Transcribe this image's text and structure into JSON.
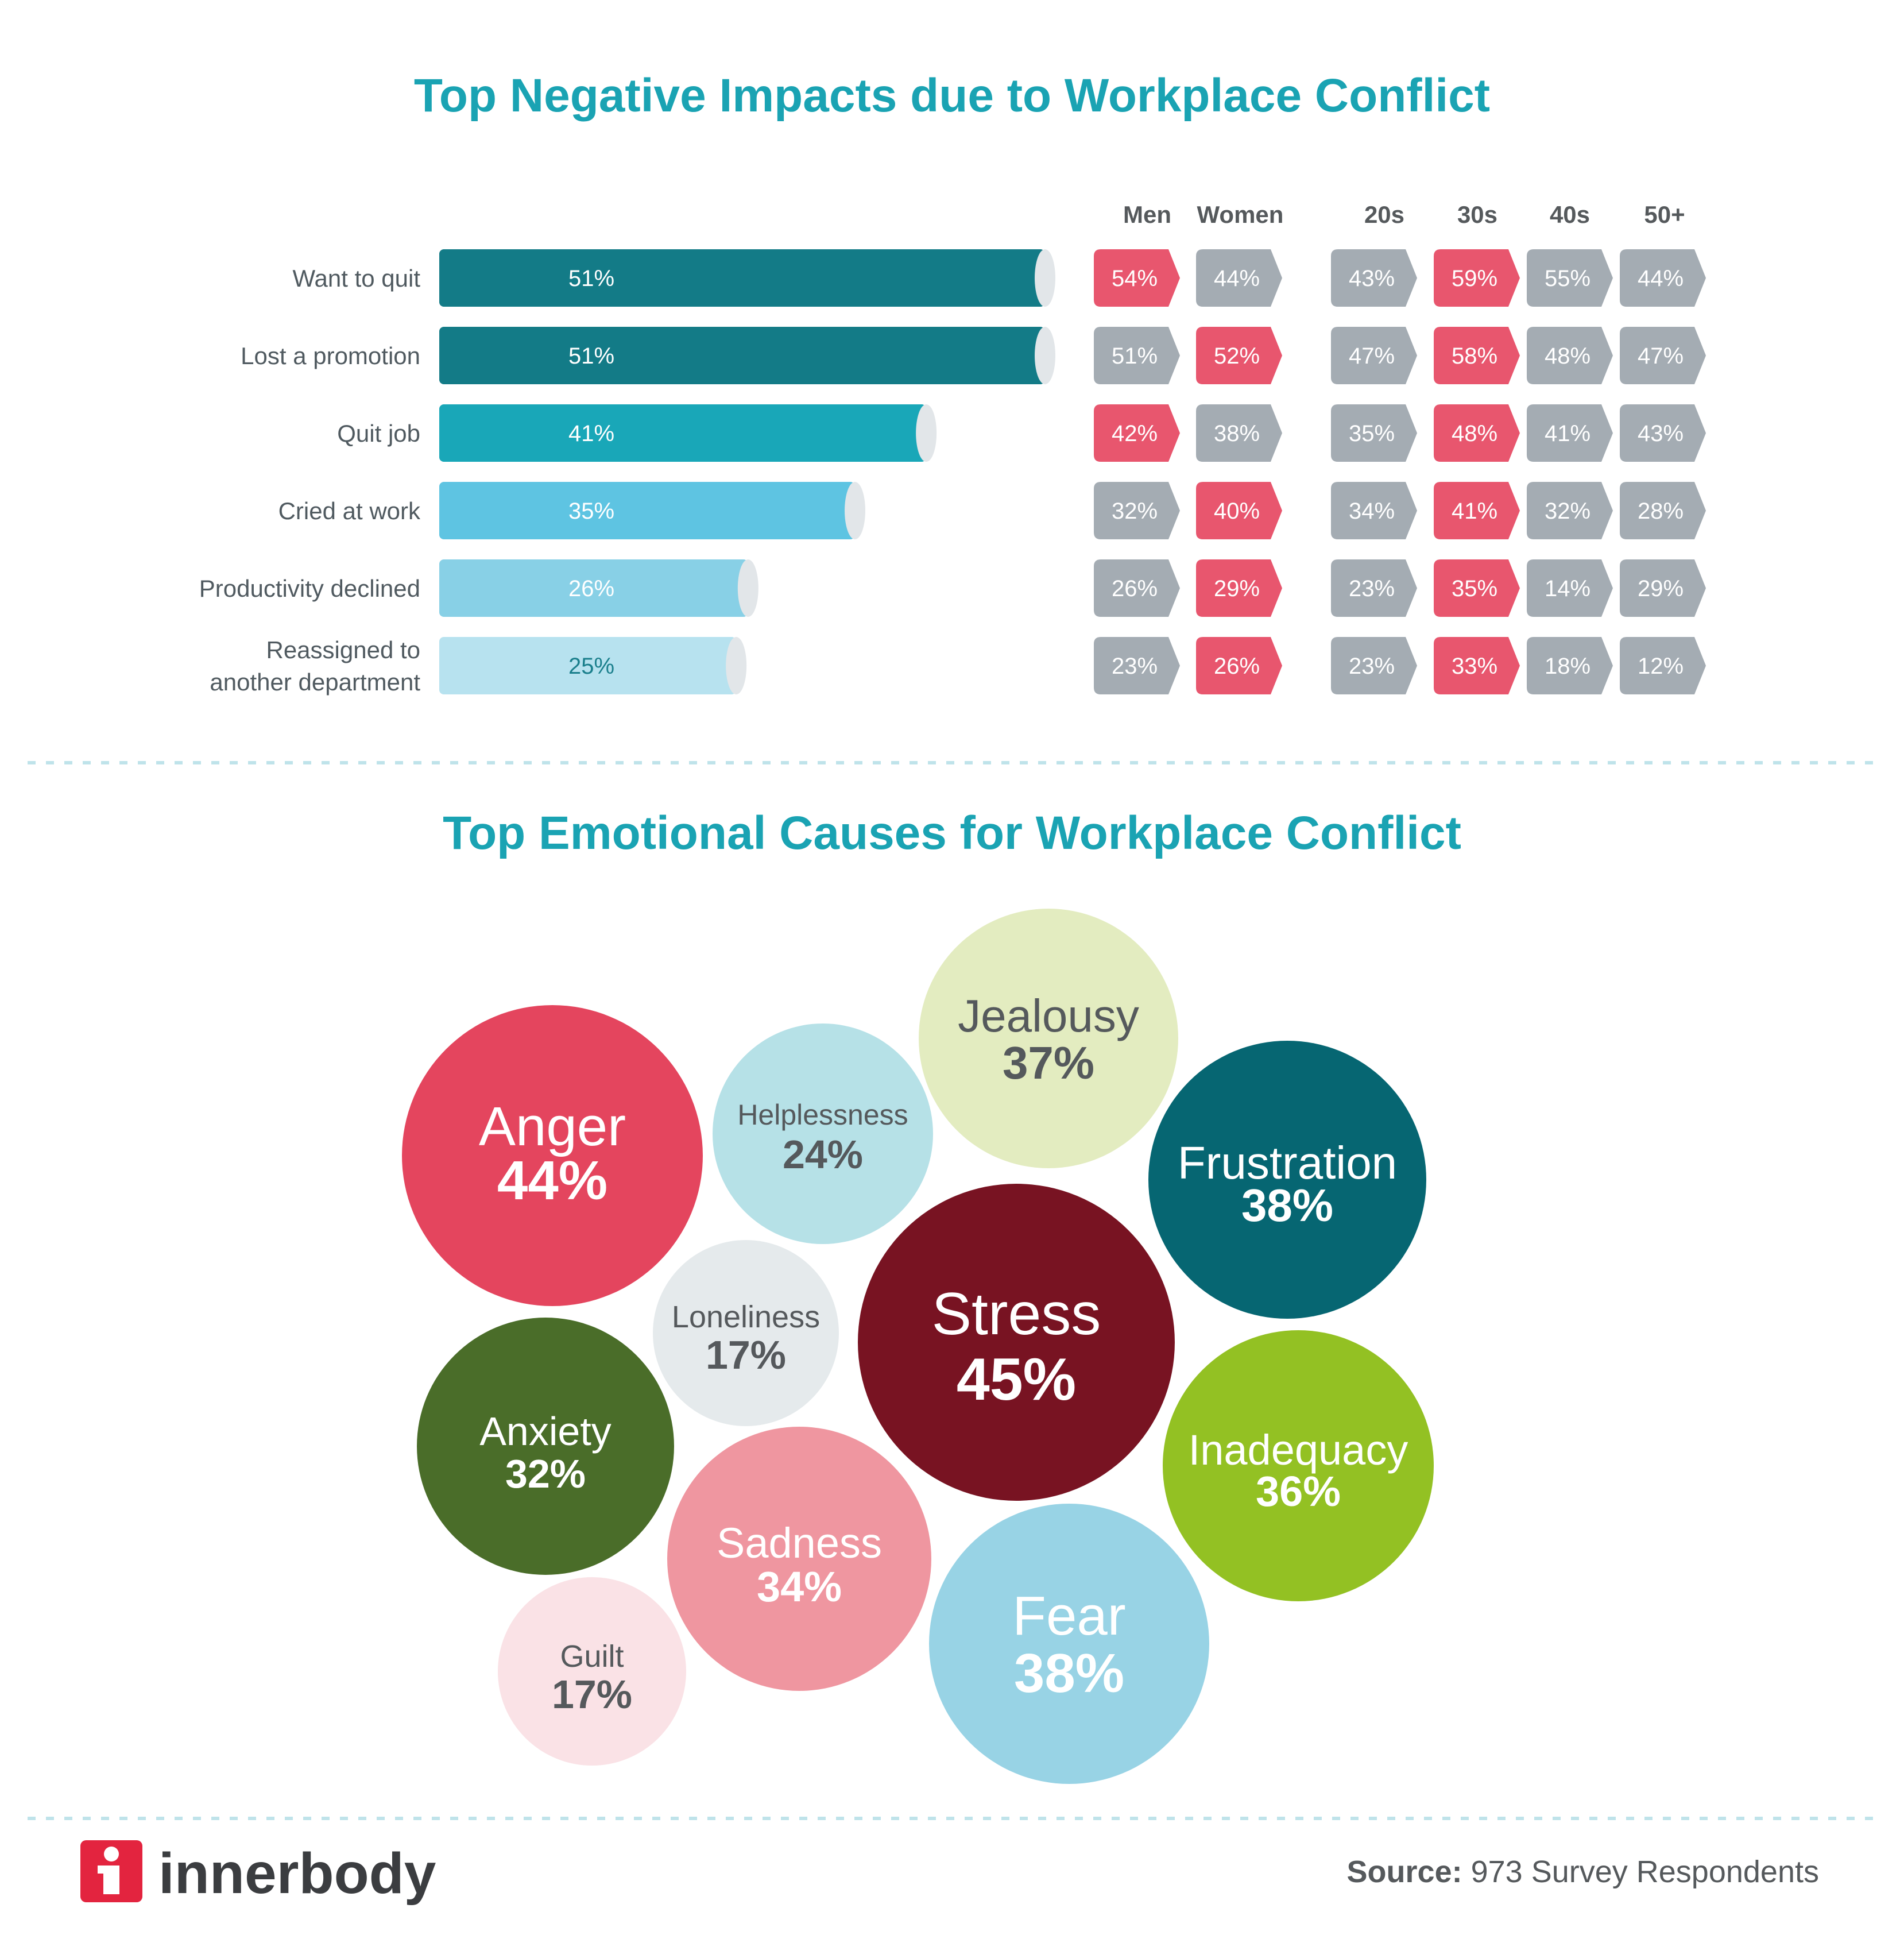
{
  "colors": {
    "title": "#1aa3b3",
    "highlight": "#e8566e",
    "neutral": "#a4acb3",
    "divider": "#bfe3ea",
    "brand": "#e3243f"
  },
  "chart_data": [
    {
      "type": "bar",
      "orientation": "horizontal",
      "title": "Top Negative Impacts due to Workplace Conflict",
      "categories": [
        "Want to quit",
        "Lost a promotion",
        "Quit job",
        "Cried at work",
        "Productivity declined",
        [
          "Reassigned to",
          "another department"
        ]
      ],
      "values": [
        51,
        51,
        41,
        35,
        26,
        25
      ],
      "value_labels": [
        "51%",
        "51%",
        "41%",
        "35%",
        "26%",
        "25%"
      ],
      "bar_colors": [
        "#137b87",
        "#137b87",
        "#19a7b8",
        "#5ec4e2",
        "#88d0e6",
        "#b7e2ef"
      ],
      "label_colors": [
        "#ffffff",
        "#ffffff",
        "#ffffff",
        "#ffffff",
        "#ffffff",
        "#1a7f8c"
      ],
      "xlim": [
        0,
        51
      ],
      "breakdowns": {
        "gender": {
          "columns": [
            "Men",
            "Women"
          ],
          "values": [
            [
              "54%",
              "44%"
            ],
            [
              "51%",
              "52%"
            ],
            [
              "42%",
              "38%"
            ],
            [
              "32%",
              "40%"
            ],
            [
              "26%",
              "29%"
            ],
            [
              "23%",
              "26%"
            ]
          ],
          "highlight": [
            [
              true,
              false
            ],
            [
              false,
              true
            ],
            [
              true,
              false
            ],
            [
              false,
              true
            ],
            [
              false,
              true
            ],
            [
              false,
              true
            ]
          ]
        },
        "age": {
          "columns": [
            "20s",
            "30s",
            "40s",
            "50+"
          ],
          "values": [
            [
              "43%",
              "59%",
              "55%",
              "44%"
            ],
            [
              "47%",
              "58%",
              "48%",
              "47%"
            ],
            [
              "35%",
              "48%",
              "41%",
              "43%"
            ],
            [
              "34%",
              "41%",
              "32%",
              "28%"
            ],
            [
              "23%",
              "35%",
              "14%",
              "29%"
            ],
            [
              "23%",
              "33%",
              "18%",
              "12%"
            ]
          ],
          "highlight": [
            [
              false,
              true,
              false,
              false
            ],
            [
              false,
              true,
              false,
              false
            ],
            [
              false,
              true,
              false,
              false
            ],
            [
              false,
              true,
              false,
              false
            ],
            [
              false,
              true,
              false,
              false
            ],
            [
              false,
              true,
              false,
              false
            ]
          ]
        }
      }
    },
    {
      "type": "bubble",
      "title": "Top Emotional Causes for Workplace Conflict",
      "items": [
        {
          "label": "Jealousy",
          "value": 37,
          "text": "37%",
          "color": "#e3ecc0",
          "text_color": "#55595c"
        },
        {
          "label": "Anger",
          "value": 44,
          "text": "44%",
          "color": "#e4455e",
          "text_color": "#ffffff"
        },
        {
          "label": "Helplessness",
          "value": 24,
          "text": "24%",
          "color": "#b6e1e7",
          "text_color": "#55595c"
        },
        {
          "label": "Frustration",
          "value": 38,
          "text": "38%",
          "color": "#066672",
          "text_color": "#ffffff"
        },
        {
          "label": "Loneliness",
          "value": 17,
          "text": "17%",
          "color": "#e5eaec",
          "text_color": "#55595c"
        },
        {
          "label": "Stress",
          "value": 45,
          "text": "45%",
          "color": "#781322",
          "text_color": "#ffffff"
        },
        {
          "label": "Anxiety",
          "value": 32,
          "text": "32%",
          "color": "#4a6d29",
          "text_color": "#ffffff"
        },
        {
          "label": "Inadequacy",
          "value": 36,
          "text": "36%",
          "color": "#93c123",
          "text_color": "#ffffff"
        },
        {
          "label": "Sadness",
          "value": 34,
          "text": "34%",
          "color": "#ef96a0",
          "text_color": "#ffffff"
        },
        {
          "label": "Fear",
          "value": 38,
          "text": "38%",
          "color": "#98d3e5",
          "text_color": "#ffffff"
        },
        {
          "label": "Guilt",
          "value": 17,
          "text": "17%",
          "color": "#fae2e6",
          "text_color": "#55595c"
        }
      ]
    }
  ],
  "footer": {
    "brand": "innerbody",
    "source_label": "Source:",
    "source_text": " 973 Survey Respondents"
  }
}
